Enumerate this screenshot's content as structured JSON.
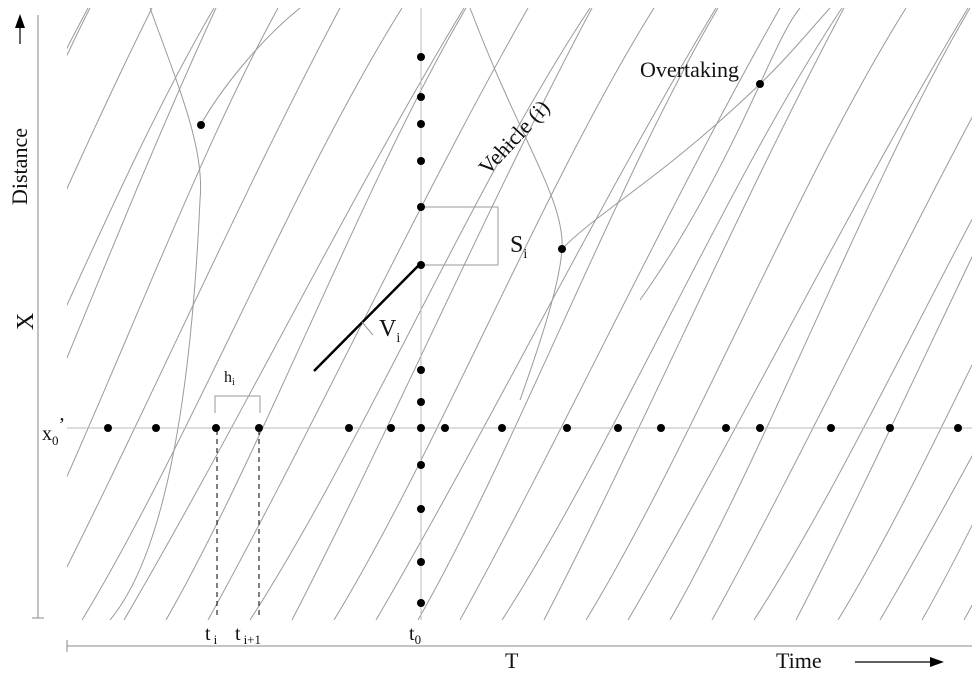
{
  "labels": {
    "distance": "Distance",
    "x_axis_label": "X",
    "x0": "x",
    "x0_sub": "0",
    "x0_prime": "’",
    "time": "Time",
    "t_axis_label": "T",
    "t_i": "t",
    "t_i_sub": "i",
    "t_i1": "t",
    "t_i1_sub": "i+1",
    "t0": "t",
    "t0_sub": "0",
    "h_i": "h",
    "h_i_sub": "i",
    "s_i": "S",
    "s_i_sub": "i",
    "v_i": "V",
    "v_i_sub": "i",
    "vehicle": "Vehicle (i)",
    "overtaking": "Overtaking"
  },
  "colors": {
    "trajectory": "#9a9a9a",
    "point": "#000000",
    "text": "#111111"
  }
}
